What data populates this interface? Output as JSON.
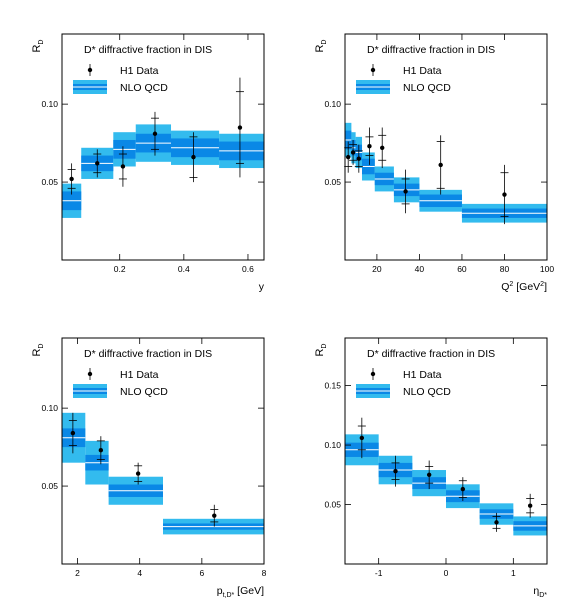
{
  "colors": {
    "band_outer": "#33bbee",
    "band_inner": "#0a88e6",
    "band_line": "#ffffff",
    "data": "#000000",
    "frame": "#000000"
  },
  "chart_data": [
    {
      "type": "scatter",
      "title": "D* diffractive fraction in DIS",
      "xlabel": "y",
      "ylabel": "R",
      "xlim": [
        0.02,
        0.65
      ],
      "ylim": [
        0.0,
        0.145
      ],
      "xticks": [
        0.2,
        0.4,
        0.6
      ],
      "xtick_labels": [
        "0.2",
        "0.4",
        "0.6"
      ],
      "yticks": [
        0.05,
        0.1
      ],
      "ytick_labels": [
        "0.05",
        "0.10"
      ],
      "legend": [
        "H1 Data",
        "NLO QCD"
      ],
      "series": [
        {
          "name": "H1 Data",
          "x": [
            0.05,
            0.13,
            0.21,
            0.31,
            0.43,
            0.575
          ],
          "y": [
            0.052,
            0.062,
            0.06,
            0.081,
            0.066,
            0.085
          ],
          "err_stat": [
            0.006,
            0.006,
            0.008,
            0.01,
            0.013,
            0.023
          ],
          "err_tot": [
            0.01,
            0.009,
            0.013,
            0.014,
            0.016,
            0.032
          ]
        },
        {
          "name": "NLO QCD",
          "bins": [
            [
              0.02,
              0.08
            ],
            [
              0.08,
              0.18
            ],
            [
              0.18,
              0.25
            ],
            [
              0.25,
              0.36
            ],
            [
              0.36,
              0.51
            ],
            [
              0.51,
              0.65
            ]
          ],
          "center": [
            0.038,
            0.062,
            0.071,
            0.075,
            0.072,
            0.07
          ],
          "inner": [
            0.006,
            0.005,
            0.006,
            0.006,
            0.006,
            0.006
          ],
          "outer": [
            0.011,
            0.01,
            0.011,
            0.012,
            0.011,
            0.011
          ]
        }
      ]
    },
    {
      "type": "scatter",
      "title": "D* diffractive fraction in DIS",
      "xlabel": "Q [GeV ]",
      "ylabel": "R",
      "xlim": [
        5,
        100
      ],
      "ylim": [
        0.0,
        0.145
      ],
      "xticks": [
        20,
        40,
        60,
        80,
        100
      ],
      "xtick_labels": [
        "20",
        "40",
        "60",
        "80",
        "100"
      ],
      "yticks": [
        0.05,
        0.1
      ],
      "ytick_labels": [
        "0.05",
        "0.10"
      ],
      "legend": [
        "H1 Data",
        "NLO QCD"
      ],
      "series": [
        {
          "name": "H1 Data",
          "x": [
            6.5,
            8.8,
            11.5,
            16.5,
            22.5,
            33.5,
            50,
            80
          ],
          "y": [
            0.066,
            0.069,
            0.065,
            0.073,
            0.072,
            0.044,
            0.061,
            0.042
          ],
          "err_stat": [
            0.006,
            0.005,
            0.005,
            0.006,
            0.008,
            0.008,
            0.015,
            0.014
          ],
          "err_tot": [
            0.01,
            0.008,
            0.009,
            0.012,
            0.013,
            0.014,
            0.019,
            0.019
          ]
        },
        {
          "name": "NLO QCD",
          "bins": [
            [
              5,
              8
            ],
            [
              8,
              10
            ],
            [
              10,
              13
            ],
            [
              13,
              19
            ],
            [
              19,
              28
            ],
            [
              28,
              40
            ],
            [
              40,
              60
            ],
            [
              60,
              100
            ]
          ],
          "center": [
            0.077,
            0.072,
            0.069,
            0.06,
            0.052,
            0.045,
            0.038,
            0.03
          ],
          "inner": [
            0.006,
            0.005,
            0.005,
            0.005,
            0.004,
            0.004,
            0.004,
            0.003
          ],
          "outer": [
            0.011,
            0.01,
            0.01,
            0.009,
            0.008,
            0.008,
            0.007,
            0.006
          ]
        }
      ]
    },
    {
      "type": "scatter",
      "title": "D* diffractive fraction in DIS",
      "xlabel": "p [GeV]",
      "ylabel": "R",
      "xlim": [
        1.5,
        8
      ],
      "ylim": [
        0.0,
        0.145
      ],
      "xticks": [
        2,
        4,
        6,
        8
      ],
      "xtick_labels": [
        "2",
        "4",
        "6",
        "8"
      ],
      "yticks": [
        0.05,
        0.1
      ],
      "ytick_labels": [
        "0.05",
        "0.10"
      ],
      "legend": [
        "H1 Data",
        "NLO QCD"
      ],
      "series": [
        {
          "name": "H1 Data",
          "x": [
            1.85,
            2.75,
            3.95,
            6.4
          ],
          "y": [
            0.084,
            0.073,
            0.058,
            0.031
          ],
          "err_stat": [
            0.008,
            0.006,
            0.005,
            0.004
          ],
          "err_tot": [
            0.013,
            0.009,
            0.007,
            0.007
          ]
        },
        {
          "name": "NLO QCD",
          "bins": [
            [
              1.5,
              2.25
            ],
            [
              2.25,
              3.0
            ],
            [
              3.0,
              4.75
            ],
            [
              4.75,
              8.0
            ]
          ],
          "center": [
            0.081,
            0.065,
            0.047,
            0.024
          ],
          "inner": [
            0.006,
            0.005,
            0.004,
            0.002
          ],
          "outer": [
            0.016,
            0.014,
            0.009,
            0.005
          ]
        }
      ]
    },
    {
      "type": "scatter",
      "title": "D* diffractive fraction in DIS",
      "xlabel": "η",
      "ylabel": "R",
      "xlim": [
        -1.5,
        1.5
      ],
      "ylim": [
        0.0,
        0.19
      ],
      "xticks": [
        -1,
        0,
        1
      ],
      "xtick_labels": [
        "-1",
        "0",
        "1"
      ],
      "yticks": [
        0.05,
        0.1,
        0.15
      ],
      "ytick_labels": [
        "0.05",
        "0.10",
        "0.15"
      ],
      "legend": [
        "H1 Data",
        "NLO QCD"
      ],
      "series": [
        {
          "name": "H1 Data",
          "x": [
            -1.25,
            -0.75,
            -0.25,
            0.25,
            0.75,
            1.25
          ],
          "y": [
            0.106,
            0.078,
            0.075,
            0.063,
            0.035,
            0.049
          ],
          "err_stat": [
            0.01,
            0.007,
            0.007,
            0.007,
            0.005,
            0.006
          ],
          "err_tot": [
            0.017,
            0.013,
            0.012,
            0.01,
            0.008,
            0.01
          ]
        },
        {
          "name": "NLO QCD",
          "bins": [
            [
              -1.5,
              -1.0
            ],
            [
              -1.0,
              -0.5
            ],
            [
              -0.5,
              0.0
            ],
            [
              0.0,
              0.5
            ],
            [
              0.5,
              1.0
            ],
            [
              1.0,
              1.5
            ]
          ],
          "center": [
            0.096,
            0.079,
            0.068,
            0.057,
            0.042,
            0.032
          ],
          "inner": [
            0.006,
            0.006,
            0.005,
            0.005,
            0.004,
            0.004
          ],
          "outer": [
            0.013,
            0.012,
            0.011,
            0.01,
            0.009,
            0.008
          ]
        }
      ]
    }
  ]
}
